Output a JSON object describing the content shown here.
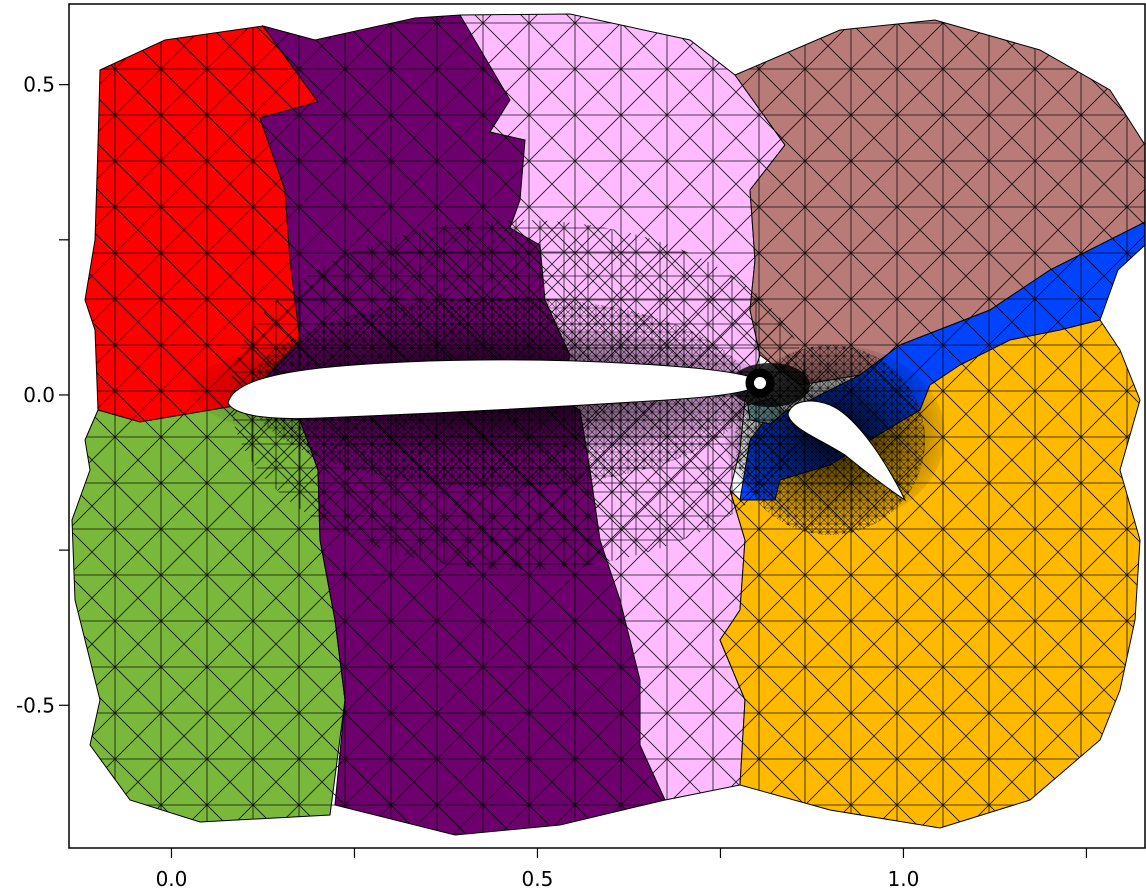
{
  "chart_data": {
    "type": "mesh-partition",
    "title": "",
    "xlabel": "",
    "ylabel": "",
    "xlim": [
      -0.14,
      1.33
    ],
    "ylim": [
      -0.73,
      0.63
    ],
    "x_ticks": [
      {
        "value": 0.0,
        "label": "0.0"
      },
      {
        "value": 0.5,
        "label": "0.5"
      },
      {
        "value": 1.0,
        "label": "1.0"
      }
    ],
    "x_minor_ticks": [
      0.25,
      0.75,
      1.25
    ],
    "y_ticks": [
      {
        "value": 0.5,
        "label": "0.5"
      },
      {
        "value": 0.0,
        "label": "0.0"
      },
      {
        "value": -0.5,
        "label": "-0.5"
      }
    ],
    "y_minor_ticks": [
      0.25,
      -0.25
    ],
    "partition_colors": [
      {
        "name": "red",
        "hex": "#ff0000"
      },
      {
        "name": "purple",
        "hex": "#6e006e"
      },
      {
        "name": "pink",
        "hex": "#ffbbff"
      },
      {
        "name": "brown",
        "hex": "#b97b78"
      },
      {
        "name": "blue",
        "hex": "#0044ff"
      },
      {
        "name": "green",
        "hex": "#7ab83c"
      },
      {
        "name": "orange",
        "hex": "#ffba00"
      },
      {
        "name": "teal",
        "hex": "#7fb7b7"
      }
    ],
    "airfoils": [
      {
        "name": "main-element",
        "leading_edge": [
          0.08,
          -0.02
        ],
        "trailing_edge": [
          0.82,
          0.02
        ]
      },
      {
        "name": "flap",
        "leading_edge": [
          0.84,
          -0.03
        ],
        "trailing_edge": [
          1.01,
          -0.18
        ]
      }
    ]
  }
}
